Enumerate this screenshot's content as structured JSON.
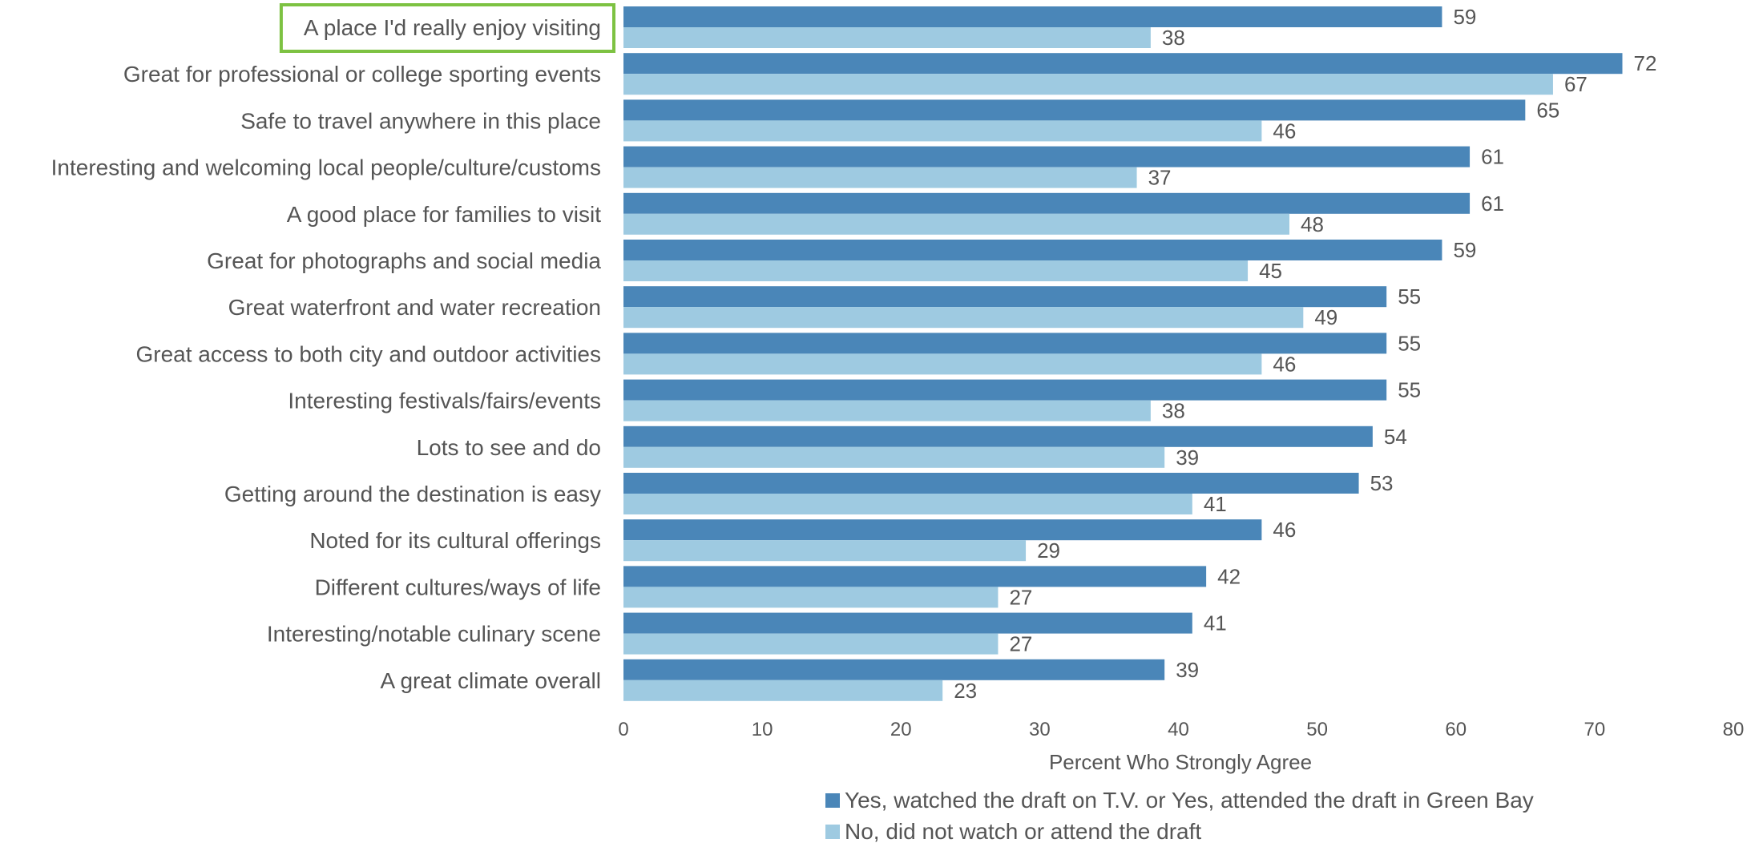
{
  "chart_data": {
    "type": "bar",
    "orientation": "horizontal",
    "categories": [
      "A place I'd really enjoy visiting",
      "Great for professional or college sporting events",
      "Safe to travel anywhere in this place",
      "Interesting and welcoming local people/culture/customs",
      "A good place for families to visit",
      "Great for photographs and social media",
      "Great waterfront and water recreation",
      "Great access to both city and outdoor activities",
      "Interesting festivals/fairs/events",
      "Lots to see and do",
      "Getting around the destination is easy",
      "Noted for its cultural offerings",
      "Different cultures/ways of life",
      "Interesting/notable culinary scene",
      "A great climate overall"
    ],
    "series": [
      {
        "name": "Yes, watched the draft on T.V. or Yes, attended the draft in Green Bay",
        "color": "#4a86b8",
        "values": [
          59,
          72,
          65,
          61,
          61,
          59,
          55,
          55,
          55,
          54,
          53,
          46,
          42,
          41,
          39
        ]
      },
      {
        "name": "No, did not watch or attend the draft",
        "color": "#9ecae1",
        "values": [
          38,
          67,
          46,
          37,
          48,
          45,
          49,
          46,
          38,
          39,
          41,
          29,
          27,
          27,
          23
        ]
      }
    ],
    "xlabel": "Percent Who Strongly Agree",
    "xlim": [
      0,
      80
    ],
    "xticks": [
      0,
      10,
      20,
      30,
      40,
      50,
      60,
      70,
      80
    ],
    "grid": false,
    "legend_position": "bottom",
    "highlighted_category": "A place I'd really enjoy visiting",
    "highlight_color": "#7dc242"
  }
}
